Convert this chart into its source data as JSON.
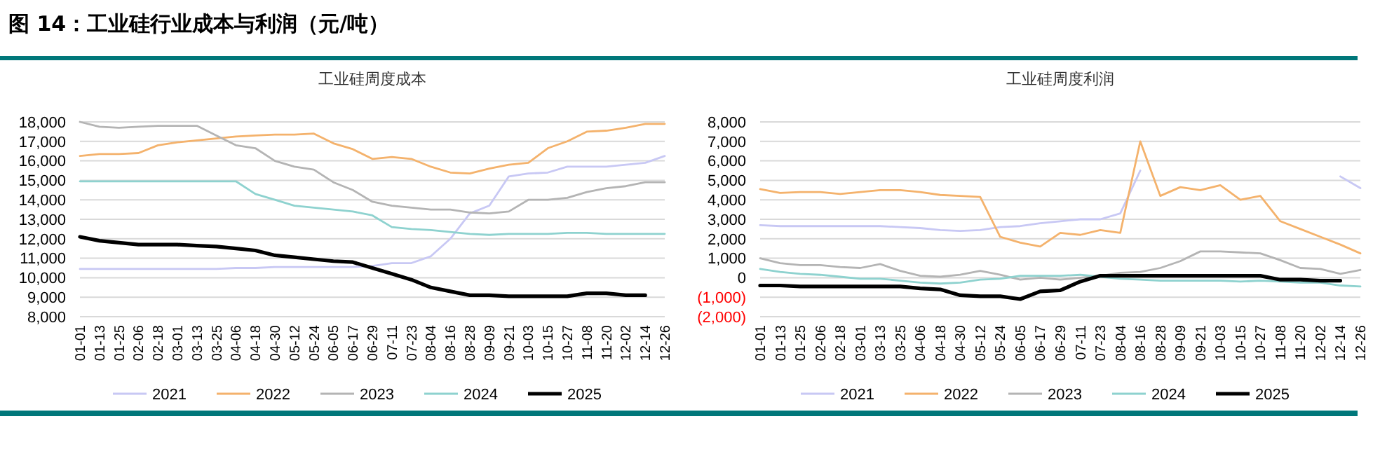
{
  "chart_data": [
    {
      "type": "line",
      "title": "图 14：工业硅行业成本与利润（元/吨）",
      "subtitle": "工业硅周度成本",
      "categories": [
        "01-01",
        "01-13",
        "01-25",
        "02-06",
        "02-18",
        "03-01",
        "03-13",
        "03-25",
        "04-06",
        "04-18",
        "04-30",
        "05-12",
        "05-24",
        "06-05",
        "06-17",
        "06-29",
        "07-11",
        "07-23",
        "08-04",
        "08-16",
        "08-28",
        "09-09",
        "09-21",
        "10-03",
        "10-15",
        "10-27",
        "11-08",
        "11-20",
        "12-02",
        "12-14",
        "12-26"
      ],
      "series": [
        {
          "name": "2021",
          "color": "#c8c8f4",
          "values": [
            10450,
            10450,
            10450,
            10450,
            10450,
            10450,
            10450,
            10450,
            10500,
            10500,
            10550,
            10550,
            10550,
            10550,
            10550,
            10600,
            10750,
            10750,
            11100,
            12000,
            13300,
            13700,
            15200,
            15350,
            15400,
            15700,
            15700,
            15700,
            15800,
            15900,
            16250
          ]
        },
        {
          "name": "2022",
          "color": "#f4b26c",
          "values": [
            16250,
            16350,
            16350,
            16400,
            16800,
            16950,
            17050,
            17150,
            17250,
            17300,
            17350,
            17350,
            17400,
            16900,
            16600,
            16100,
            16200,
            16100,
            15700,
            15400,
            15350,
            15600,
            15800,
            15900,
            16650,
            17000,
            17500,
            17550,
            17700,
            17900,
            17900
          ]
        },
        {
          "name": "2023",
          "color": "#b4b4b4",
          "values": [
            18000,
            17750,
            17700,
            17750,
            17800,
            17800,
            17800,
            17300,
            16800,
            16650,
            16000,
            15700,
            15550,
            14900,
            14500,
            13900,
            13700,
            13600,
            13500,
            13500,
            13350,
            13300,
            13400,
            14000,
            14000,
            14100,
            14400,
            14600,
            14700,
            14900,
            14900
          ]
        },
        {
          "name": "2024",
          "color": "#8ed2cf",
          "values": [
            14950,
            14950,
            14950,
            14950,
            14950,
            14950,
            14950,
            14950,
            14950,
            14300,
            14000,
            13700,
            13600,
            13500,
            13400,
            13200,
            12600,
            12500,
            12450,
            12350,
            12250,
            12200,
            12250,
            12250,
            12250,
            12300,
            12300,
            12250,
            12250,
            12250,
            12250
          ]
        },
        {
          "name": "2025",
          "color": "#000000",
          "values": [
            12100,
            11900,
            11800,
            11700,
            11700,
            11700,
            11650,
            11600,
            11500,
            11400,
            11150,
            11050,
            10950,
            10850,
            10800,
            10500,
            10200,
            9900,
            9500,
            9300,
            9100,
            9100,
            9050,
            9050,
            9050,
            9050,
            9200,
            9200,
            9100,
            9100,
            null
          ]
        }
      ],
      "ylim": [
        8000,
        18000
      ],
      "yticks": [
        {
          "value": 8000,
          "label": "8,000"
        },
        {
          "value": 9000,
          "label": "9,000"
        },
        {
          "value": 10000,
          "label": "10,000"
        },
        {
          "value": 11000,
          "label": "11,000"
        },
        {
          "value": 12000,
          "label": "12,000"
        },
        {
          "value": 13000,
          "label": "13,000"
        },
        {
          "value": 14000,
          "label": "14,000"
        },
        {
          "value": 15000,
          "label": "15,000"
        },
        {
          "value": 16000,
          "label": "16,000"
        },
        {
          "value": 17000,
          "label": "17,000"
        },
        {
          "value": 18000,
          "label": "18,000"
        }
      ],
      "grid": "y",
      "legend": "bottom"
    },
    {
      "type": "line",
      "title": "工业硅周度利润",
      "categories": [
        "01-01",
        "01-13",
        "01-25",
        "02-06",
        "02-18",
        "03-01",
        "03-13",
        "03-25",
        "04-06",
        "04-18",
        "04-30",
        "05-12",
        "05-24",
        "06-05",
        "06-17",
        "06-29",
        "07-11",
        "07-23",
        "08-04",
        "08-16",
        "08-28",
        "09-09",
        "09-21",
        "10-03",
        "10-15",
        "10-27",
        "11-08",
        "11-20",
        "12-02",
        "12-14",
        "12-26"
      ],
      "series": [
        {
          "name": "2021",
          "color": "#c8c8f4",
          "values": [
            2700,
            2650,
            2650,
            2650,
            2650,
            2650,
            2650,
            2600,
            2550,
            2450,
            2400,
            2450,
            2600,
            2650,
            2800,
            2900,
            3000,
            3000,
            3300,
            5500,
            null,
            null,
            null,
            null,
            null,
            null,
            null,
            null,
            null,
            5200,
            4600
          ]
        },
        {
          "name": "2022",
          "color": "#f4b26c",
          "values": [
            4550,
            4350,
            4400,
            4400,
            4300,
            4400,
            4500,
            4500,
            4400,
            4250,
            4200,
            4150,
            2100,
            1800,
            1600,
            2300,
            2200,
            2450,
            2300,
            7000,
            4200,
            4650,
            4500,
            4750,
            4000,
            4200,
            2900,
            2500,
            2100,
            1700,
            1250
          ]
        },
        {
          "name": "2023",
          "color": "#b4b4b4",
          "values": [
            1000,
            750,
            650,
            650,
            550,
            500,
            700,
            350,
            100,
            50,
            150,
            350,
            150,
            -100,
            0,
            -100,
            0,
            100,
            250,
            300,
            500,
            850,
            1350,
            1350,
            1300,
            1250,
            900,
            500,
            450,
            200,
            400
          ]
        },
        {
          "name": "2024",
          "color": "#8ed2cf",
          "values": [
            450,
            300,
            200,
            150,
            50,
            -50,
            -50,
            -150,
            -250,
            -300,
            -250,
            -100,
            -50,
            100,
            100,
            100,
            150,
            50,
            -50,
            -100,
            -150,
            -150,
            -150,
            -150,
            -200,
            -150,
            -200,
            -250,
            -250,
            -400,
            -450
          ]
        },
        {
          "name": "2025",
          "color": "#000000",
          "values": [
            -400,
            -400,
            -450,
            -450,
            -450,
            -450,
            -450,
            -450,
            -550,
            -600,
            -900,
            -950,
            -950,
            -1100,
            -700,
            -650,
            -200,
            100,
            100,
            100,
            100,
            100,
            100,
            100,
            100,
            100,
            -100,
            -100,
            -150,
            -150,
            null
          ]
        }
      ],
      "ylim": [
        -2000,
        8000
      ],
      "yticks": [
        {
          "value": -2000,
          "label": "(2,000)"
        },
        {
          "value": -1000,
          "label": "(1,000)"
        },
        0,
        {
          "value": 1000,
          "label": "1,000"
        },
        {
          "value": 2000,
          "label": "2,000"
        },
        {
          "value": 3000,
          "label": "3,000"
        },
        {
          "value": 4000,
          "label": "4,000"
        },
        {
          "value": 5000,
          "label": "5,000"
        },
        {
          "value": 6000,
          "label": "6,000"
        },
        {
          "value": 7000,
          "label": "7,000"
        },
        {
          "value": 8000,
          "label": "8,000"
        }
      ],
      "grid": "y",
      "legend": "bottom"
    }
  ]
}
